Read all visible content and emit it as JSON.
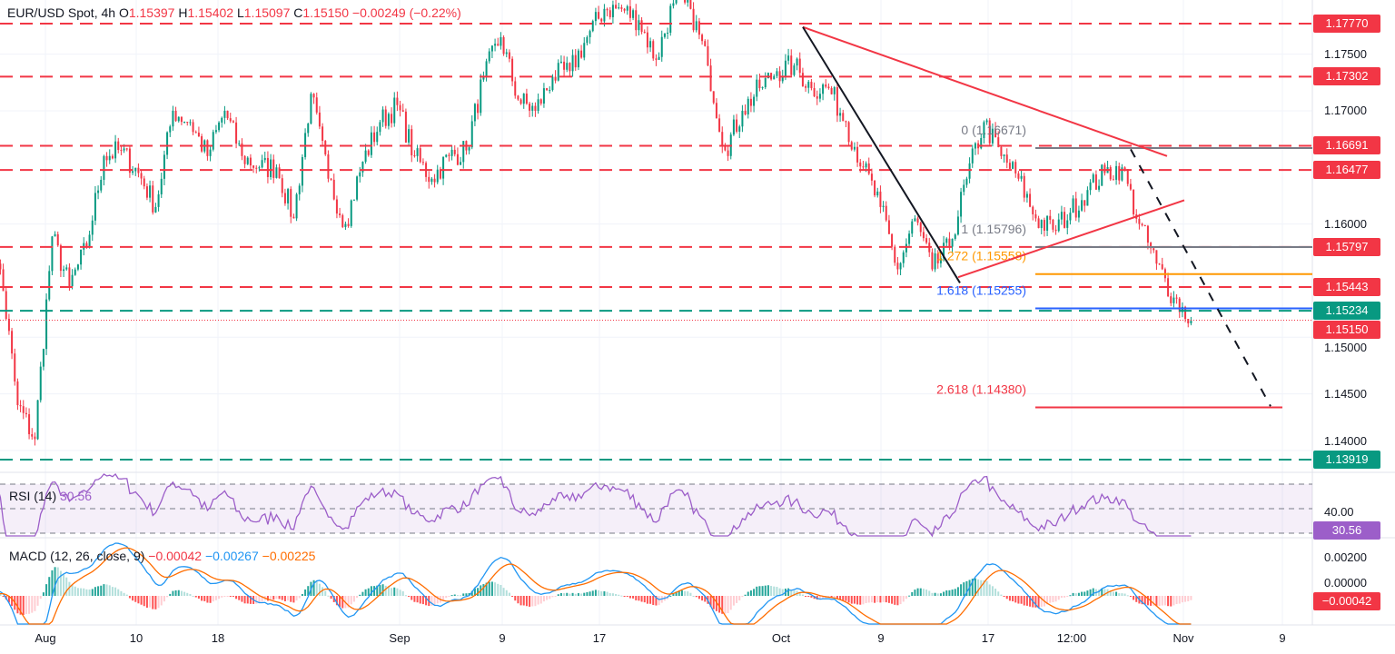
{
  "header": {
    "symbol": "EUR/USD Spot, 4h",
    "o_label": "O",
    "o": "1.15397",
    "h_label": "H",
    "h": "1.15402",
    "l_label": "L",
    "l": "1.15097",
    "c_label": "C",
    "c": "1.15150",
    "change": "−0.00249 (−0.22%)"
  },
  "rsi": {
    "label": "RSI (14)",
    "value": "30.56",
    "axis_label": "40.00",
    "color": "#9c5ec9"
  },
  "macd": {
    "label": "MACD (12, 26, close, 9)",
    "hist": "−0.00042",
    "macd": "−0.00267",
    "signal": "−0.00225",
    "axis_ticks": [
      "0.00200",
      "0.00000"
    ],
    "tag": "−0.00042"
  },
  "colors": {
    "up": "#089981",
    "down": "#f23645",
    "macd": "#2196f3",
    "signal": "#ff6d00",
    "fib_orange": "#ff9800",
    "fib_blue": "#2962ff",
    "fib_gray": "#787b86"
  },
  "chart_data": {
    "type": "candlestick",
    "symbol": "EUR/USD",
    "timeframe": "4h",
    "ylim": [
      1.1365,
      1.1798
    ],
    "y_ticks": [
      "1.17500",
      "1.17000",
      "1.16000",
      "1.15000",
      "1.14500",
      "1.14000"
    ],
    "x_ticks": [
      "Aug",
      "10",
      "18",
      "Sep",
      "9",
      "17",
      "Oct",
      "9",
      "17",
      "12:00",
      "Nov",
      "9"
    ],
    "daily_closes": [
      [
        "2025-07-29",
        1.156
      ],
      [
        "2025-07-30",
        1.144
      ],
      [
        "2025-07-31",
        1.141
      ],
      [
        "2025-08-01",
        1.1589
      ],
      [
        "2025-08-04",
        1.1545
      ],
      [
        "2025-08-05",
        1.158
      ],
      [
        "2025-08-06",
        1.166
      ],
      [
        "2025-08-07",
        1.1665
      ],
      [
        "2025-08-08",
        1.1645
      ],
      [
        "2025-08-11",
        1.1615
      ],
      [
        "2025-08-12",
        1.17
      ],
      [
        "2025-08-13",
        1.169
      ],
      [
        "2025-08-14",
        1.166
      ],
      [
        "2025-08-15",
        1.17
      ],
      [
        "2025-08-18",
        1.166
      ],
      [
        "2025-08-19",
        1.165
      ],
      [
        "2025-08-20",
        1.165
      ],
      [
        "2025-08-21",
        1.1605
      ],
      [
        "2025-08-22",
        1.1715
      ],
      [
        "2025-08-25",
        1.164
      ],
      [
        "2025-08-26",
        1.16
      ],
      [
        "2025-08-27",
        1.1655
      ],
      [
        "2025-08-28",
        1.169
      ],
      [
        "2025-08-29",
        1.1705
      ],
      [
        "2025-09-01",
        1.166
      ],
      [
        "2025-09-02",
        1.164
      ],
      [
        "2025-09-03",
        1.166
      ],
      [
        "2025-09-04",
        1.1665
      ],
      [
        "2025-09-05",
        1.173
      ],
      [
        "2025-09-08",
        1.1765
      ],
      [
        "2025-09-09",
        1.171
      ],
      [
        "2025-09-10",
        1.17
      ],
      [
        "2025-09-11",
        1.173
      ],
      [
        "2025-09-12",
        1.1735
      ],
      [
        "2025-09-15",
        1.1765
      ],
      [
        "2025-09-16",
        1.179
      ],
      [
        "2025-09-17",
        1.179
      ],
      [
        "2025-09-18",
        1.178
      ],
      [
        "2025-09-19",
        1.1745
      ],
      [
        "2025-09-22",
        1.1795
      ],
      [
        "2025-09-23",
        1.179
      ],
      [
        "2025-09-24",
        1.174
      ],
      [
        "2025-09-25",
        1.1665
      ],
      [
        "2025-09-26",
        1.17
      ],
      [
        "2025-09-29",
        1.172
      ],
      [
        "2025-09-30",
        1.1735
      ],
      [
        "2025-10-01",
        1.174
      ],
      [
        "2025-10-02",
        1.172
      ],
      [
        "2025-10-03",
        1.172
      ],
      [
        "2025-10-06",
        1.169
      ],
      [
        "2025-10-07",
        1.165
      ],
      [
        "2025-10-08",
        1.1615
      ],
      [
        "2025-10-09",
        1.156
      ],
      [
        "2025-10-10",
        1.1605
      ],
      [
        "2025-10-13",
        1.156
      ],
      [
        "2025-10-14",
        1.158
      ],
      [
        "2025-10-15",
        1.164
      ],
      [
        "2025-10-16",
        1.169
      ],
      [
        "2025-10-17",
        1.166
      ],
      [
        "2025-10-20",
        1.164
      ],
      [
        "2025-10-21",
        1.1605
      ],
      [
        "2025-10-22",
        1.1595
      ],
      [
        "2025-10-23",
        1.161
      ],
      [
        "2025-10-24",
        1.163
      ],
      [
        "2025-10-27",
        1.1645
      ],
      [
        "2025-10-28",
        1.165
      ],
      [
        "2025-10-29",
        1.16
      ],
      [
        "2025-10-30",
        1.1565
      ],
      [
        "2025-10-31",
        1.1535
      ],
      [
        "2025-11-03",
        1.1515
      ]
    ],
    "levels": [
      {
        "price": 1.1777,
        "label": "1.17770",
        "style": "red-dashed"
      },
      {
        "price": 1.17302,
        "label": "1.17302",
        "style": "red-dashed"
      },
      {
        "price": 1.16691,
        "label": "1.16691",
        "style": "red-dashed"
      },
      {
        "price": 1.16477,
        "label": "1.16477",
        "style": "red-dashed"
      },
      {
        "price": 1.15797,
        "label": "1.15797",
        "style": "red-dashed"
      },
      {
        "price": 1.15443,
        "label": "1.15443",
        "style": "red-dashed"
      },
      {
        "price": 1.15234,
        "label": "1.15234",
        "style": "green-dashed"
      },
      {
        "price": 1.13919,
        "label": "1.13919",
        "style": "green-dashed"
      },
      {
        "price": 1.1515,
        "label": "1.15150",
        "style": "current"
      }
    ],
    "fib": [
      {
        "ratio": "0",
        "price": 1.16671,
        "text": "0 (1.16671)",
        "color": "#787b86"
      },
      {
        "ratio": "1",
        "price": 1.15796,
        "text": "1 (1.15796)",
        "color": "#787b86"
      },
      {
        "ratio": "1.272",
        "price": 1.15558,
        "text": "1.272 (1.15558)",
        "color": "#ff9800"
      },
      {
        "ratio": "1.618",
        "price": 1.15255,
        "text": "1.618 (1.15255)",
        "color": "#2962ff"
      },
      {
        "ratio": "2.618",
        "price": 1.1438,
        "text": "2.618 (1.14380)",
        "color": "#f23645"
      }
    ],
    "trendlines": [
      {
        "from": [
          "2025-10-01",
          1.1774
        ],
        "to": [
          "2025-10-30",
          1.166
        ],
        "color": "#f23645",
        "style": "solid"
      },
      {
        "from": [
          "2025-10-14",
          1.1553
        ],
        "to": [
          "2025-10-31",
          1.1621
        ],
        "color": "#f23645",
        "style": "solid"
      },
      {
        "from": [
          "2025-10-01",
          1.1774
        ],
        "to": [
          "2025-10-14",
          1.1548
        ],
        "color": "#131722",
        "style": "solid"
      },
      {
        "from": [
          "2025-10-28",
          1.1666
        ],
        "to": [
          "2025-11-07",
          1.1439
        ],
        "color": "#131722",
        "style": "dashed"
      }
    ]
  }
}
